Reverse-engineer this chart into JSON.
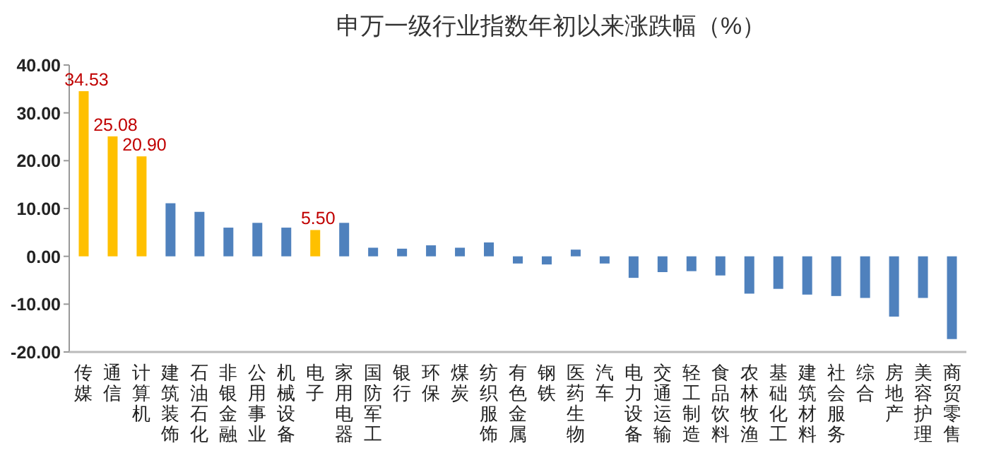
{
  "chart_data": {
    "type": "bar",
    "title": "申万一级行业指数年初以来涨跌幅（%）",
    "categories": [
      "传媒",
      "通信",
      "计算机",
      "建筑装饰",
      "石油石化",
      "非银金融",
      "公用事业",
      "机械设备",
      "电子",
      "家用电器",
      "国防军工",
      "银行",
      "环保",
      "煤炭",
      "纺织服饰",
      "有色金属",
      "钢铁",
      "医药生物",
      "汽车",
      "电力设备",
      "交通运输",
      "轻工制造",
      "食品饮料",
      "农林牧渔",
      "基础化工",
      "建筑材料",
      "社会服务",
      "综合",
      "房地产",
      "美容护理",
      "商贸零售"
    ],
    "values": [
      34.53,
      25.08,
      20.9,
      11.1,
      9.3,
      6.0,
      7.0,
      6.0,
      5.5,
      7.0,
      1.8,
      1.6,
      2.3,
      1.8,
      2.9,
      -1.5,
      -1.7,
      1.4,
      -1.5,
      -4.5,
      -3.3,
      -3.1,
      -4.0,
      -7.8,
      -6.8,
      -8.0,
      -8.3,
      -8.7,
      -12.6,
      -8.7,
      -17.3
    ],
    "colors": [
      "#ffc000",
      "#ffc000",
      "#ffc000",
      "#4f81bd",
      "#4f81bd",
      "#4f81bd",
      "#4f81bd",
      "#4f81bd",
      "#ffc000",
      "#4f81bd",
      "#4f81bd",
      "#4f81bd",
      "#4f81bd",
      "#4f81bd",
      "#4f81bd",
      "#4f81bd",
      "#4f81bd",
      "#4f81bd",
      "#4f81bd",
      "#4f81bd",
      "#4f81bd",
      "#4f81bd",
      "#4f81bd",
      "#4f81bd",
      "#4f81bd",
      "#4f81bd",
      "#4f81bd",
      "#4f81bd",
      "#4f81bd",
      "#4f81bd",
      "#4f81bd"
    ],
    "value_labels": [
      "34.53",
      "25.08",
      "20.90",
      null,
      null,
      null,
      null,
      null,
      "5.50",
      null,
      null,
      null,
      null,
      null,
      null,
      null,
      null,
      null,
      null,
      null,
      null,
      null,
      null,
      null,
      null,
      null,
      null,
      null,
      null,
      null,
      null
    ],
    "ylim": [
      -20,
      40
    ],
    "yticks": [
      {
        "value": -20,
        "label": "-20.00"
      },
      {
        "value": -10,
        "label": "-10.00"
      },
      {
        "value": 0,
        "label": "0.00"
      },
      {
        "value": 10,
        "label": "10.00"
      },
      {
        "value": 20,
        "label": "20.00"
      },
      {
        "value": 30,
        "label": "30.00"
      },
      {
        "value": 40,
        "label": "40.00"
      }
    ],
    "grid": false
  }
}
